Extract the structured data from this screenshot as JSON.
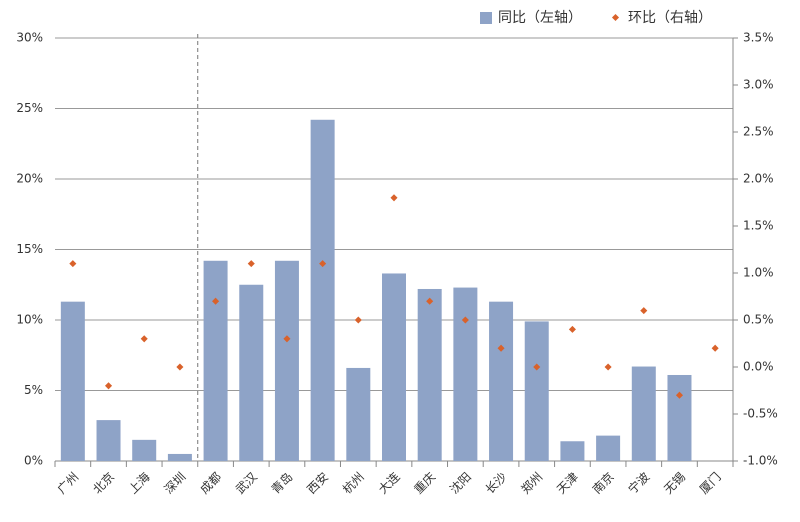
{
  "chart_data": {
    "type": "bar",
    "categories": [
      "广州",
      "北京",
      "上海",
      "深圳",
      "成都",
      "武汉",
      "青岛",
      "西安",
      "杭州",
      "大连",
      "重庆",
      "沈阳",
      "长沙",
      "郑州",
      "天津",
      "南京",
      "宁波",
      "无锡",
      "厦门"
    ],
    "series": [
      {
        "name": "同比（左轴）",
        "color": "#8ea3c7",
        "type": "bar",
        "values": [
          11.3,
          2.9,
          1.5,
          0.5,
          14.2,
          12.5,
          14.2,
          24.2,
          6.6,
          13.3,
          12.2,
          12.3,
          11.3,
          9.9,
          1.4,
          1.8,
          6.7,
          6.1,
          0
        ]
      },
      {
        "name": "环比（右轴）",
        "color": "#d9622b",
        "type": "scatter",
        "axis": "y2",
        "values": [
          1.1,
          -0.2,
          0.3,
          0.0,
          0.7,
          1.1,
          0.3,
          1.1,
          0.5,
          1.8,
          0.7,
          0.5,
          0.2,
          0.0,
          0.4,
          0.0,
          0.6,
          -0.3,
          0.2
        ]
      }
    ],
    "ylim": [
      0,
      30
    ],
    "yticks": [
      {
        "value": 0,
        "label": "0%"
      },
      {
        "value": 5,
        "label": "5%"
      },
      {
        "value": 10,
        "label": "10%"
      },
      {
        "value": 15,
        "label": "15%"
      },
      {
        "value": 20,
        "label": "20%"
      },
      {
        "value": 25,
        "label": "25%"
      },
      {
        "value": 30,
        "label": "30%"
      }
    ],
    "y2lim": [
      -1.0,
      3.5
    ],
    "y2ticks": [
      {
        "value": -1.0,
        "label": "-1.0%"
      },
      {
        "value": -0.5,
        "label": "-0.5%"
      },
      {
        "value": 0.0,
        "label": "0.0%"
      },
      {
        "value": 0.5,
        "label": "0.5%"
      },
      {
        "value": 1.0,
        "label": "1.0%"
      },
      {
        "value": 1.5,
        "label": "1.5%"
      },
      {
        "value": 2.0,
        "label": "2.0%"
      },
      {
        "value": 2.5,
        "label": "2.5%"
      },
      {
        "value": 3.0,
        "label": "3.0%"
      },
      {
        "value": 3.5,
        "label": "3.5%"
      }
    ],
    "grid": true,
    "legend": "top-right"
  }
}
